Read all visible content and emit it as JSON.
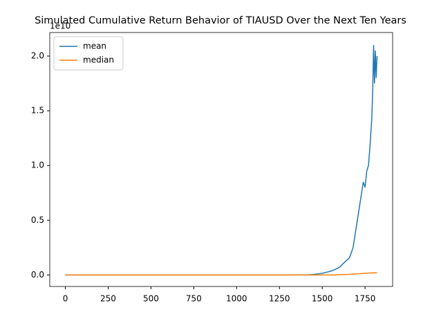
{
  "chart_data": {
    "type": "line",
    "title": "Simulated Cumulative Return Behavior of TIAUSD Over the Next Ten Years",
    "y_offset_label": "1e10",
    "x": [
      0,
      50,
      100,
      150,
      200,
      250,
      300,
      350,
      400,
      450,
      500,
      550,
      600,
      650,
      700,
      750,
      800,
      850,
      900,
      950,
      1000,
      1050,
      1100,
      1150,
      1200,
      1250,
      1300,
      1350,
      1400,
      1425,
      1450,
      1475,
      1500,
      1525,
      1550,
      1575,
      1600,
      1620,
      1640,
      1660,
      1680,
      1700,
      1710,
      1720,
      1730,
      1740,
      1750,
      1760,
      1770,
      1780,
      1790,
      1795,
      1800,
      1805,
      1810,
      1815,
      1820
    ],
    "series": [
      {
        "name": "mean",
        "color": "#1f77b4",
        "values": [
          0,
          0,
          0,
          0,
          0,
          0,
          0,
          0,
          0,
          0,
          0,
          0,
          0,
          0,
          0,
          0,
          0,
          0,
          0,
          0,
          0,
          0,
          0,
          0,
          0,
          0,
          0,
          0.001,
          0.001,
          0.002,
          0.005,
          0.01,
          0.015,
          0.025,
          0.035,
          0.05,
          0.07,
          0.1,
          0.13,
          0.16,
          0.25,
          0.45,
          0.55,
          0.65,
          0.75,
          0.85,
          0.8,
          0.95,
          1.0,
          1.2,
          1.45,
          1.7,
          2.1,
          1.75,
          2.05,
          1.8,
          2.0
        ]
      },
      {
        "name": "median",
        "color": "#ff7f0e",
        "values": [
          0,
          0,
          0,
          0,
          0,
          0,
          0,
          0,
          0,
          0,
          0,
          0,
          0,
          0,
          0,
          0,
          0,
          0,
          0,
          0,
          0,
          0,
          0,
          0,
          0,
          0,
          0,
          0,
          0,
          0,
          0,
          0,
          0,
          0,
          0,
          0,
          0.003,
          0.004,
          0.005,
          0.006,
          0.008,
          0.01,
          0.011,
          0.012,
          0.013,
          0.014,
          0.015,
          0.016,
          0.017,
          0.018,
          0.019,
          0.019,
          0.02,
          0.02,
          0.02,
          0.02,
          0.02
        ]
      }
    ],
    "xlim": [
      -91,
      1911
    ],
    "ylim": [
      -0.105,
      2.215
    ],
    "xticks": [
      0,
      250,
      500,
      750,
      1000,
      1250,
      1500,
      1750
    ],
    "yticks": [
      {
        "value": 0,
        "label": "0.0"
      },
      0.5,
      {
        "value": 1,
        "label": "1.0"
      },
      1.5,
      {
        "value": 2,
        "label": "2.0"
      }
    ],
    "legend": "upper left"
  }
}
